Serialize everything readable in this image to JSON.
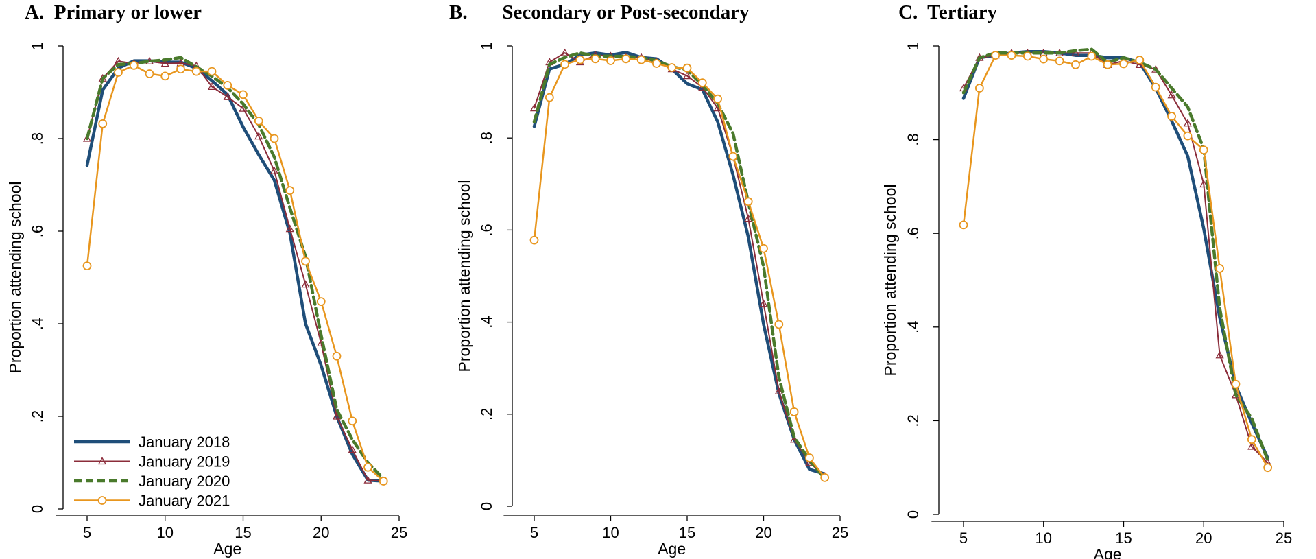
{
  "chart_data": [
    {
      "type": "line",
      "title": "A.  Primary or lower",
      "xlabel": "Age",
      "ylabel": "Proportion attending school",
      "xlim": [
        5,
        24
      ],
      "ylim": [
        0,
        1
      ],
      "xticks": [
        "5",
        "10",
        "15",
        "20",
        "25"
      ],
      "yticks": [
        "0",
        ".2",
        ".4",
        ".6",
        ".8",
        "1"
      ],
      "x": [
        5,
        6,
        7,
        8,
        9,
        10,
        11,
        12,
        13,
        14,
        15,
        16,
        17,
        18,
        19,
        20,
        21,
        22,
        23,
        24
      ],
      "legend_position": "bottom-left",
      "series": [
        {
          "name": "January 2018",
          "values": [
            0.742,
            0.905,
            0.952,
            0.968,
            0.968,
            0.965,
            0.965,
            0.952,
            0.925,
            0.895,
            0.825,
            0.765,
            0.71,
            0.595,
            0.4,
            0.31,
            0.2,
            0.118,
            0.062,
            0.06
          ]
        },
        {
          "name": "January 2019",
          "values": [
            0.8,
            0.93,
            0.967,
            0.962,
            0.967,
            0.962,
            0.963,
            0.957,
            0.912,
            0.89,
            0.865,
            0.805,
            0.73,
            0.605,
            0.485,
            0.358,
            0.2,
            0.128,
            0.062,
            0.06
          ]
        },
        {
          "name": "January 2020",
          "values": [
            0.8,
            0.93,
            0.96,
            0.962,
            0.967,
            0.97,
            0.975,
            0.955,
            0.935,
            0.91,
            0.875,
            0.83,
            0.76,
            0.65,
            0.545,
            0.375,
            0.215,
            0.15,
            0.1,
            0.065
          ]
        },
        {
          "name": "January 2021",
          "values": [
            0.525,
            0.832,
            0.943,
            0.958,
            0.94,
            0.935,
            0.95,
            0.945,
            0.945,
            0.915,
            0.895,
            0.838,
            0.8,
            0.688,
            0.535,
            0.448,
            0.33,
            0.19,
            0.09,
            0.06
          ]
        }
      ]
    },
    {
      "type": "line",
      "title": "B.       Secondary or Post-secondary",
      "xlabel": "Age",
      "ylabel": "Proportion attending school",
      "xlim": [
        5,
        24
      ],
      "ylim": [
        0,
        1
      ],
      "xticks": [
        "5",
        "10",
        "15",
        "20",
        "25"
      ],
      "yticks": [
        "0",
        ".2",
        ".4",
        ".6",
        ".8",
        "1"
      ],
      "x": [
        5,
        6,
        7,
        8,
        9,
        10,
        11,
        12,
        13,
        14,
        15,
        16,
        17,
        18,
        19,
        20,
        21,
        22,
        23,
        24
      ],
      "series": [
        {
          "name": "January 2018",
          "values": [
            0.825,
            0.95,
            0.96,
            0.98,
            0.985,
            0.98,
            0.986,
            0.975,
            0.972,
            0.95,
            0.918,
            0.905,
            0.835,
            0.72,
            0.585,
            0.395,
            0.245,
            0.145,
            0.08,
            0.07
          ]
        },
        {
          "name": "January 2019",
          "values": [
            0.865,
            0.965,
            0.985,
            0.965,
            0.98,
            0.978,
            0.975,
            0.975,
            0.965,
            0.95,
            0.935,
            0.91,
            0.865,
            0.76,
            0.625,
            0.44,
            0.25,
            0.145,
            0.095,
            0.065
          ]
        },
        {
          "name": "January 2020",
          "values": [
            0.835,
            0.96,
            0.975,
            0.985,
            0.978,
            0.978,
            0.977,
            0.975,
            0.968,
            0.955,
            0.948,
            0.915,
            0.875,
            0.81,
            0.66,
            0.52,
            0.28,
            0.15,
            0.1,
            0.06
          ]
        },
        {
          "name": "January 2021",
          "values": [
            0.578,
            0.888,
            0.96,
            0.97,
            0.972,
            0.968,
            0.972,
            0.97,
            0.962,
            0.953,
            0.952,
            0.92,
            0.885,
            0.76,
            0.662,
            0.56,
            0.395,
            0.205,
            0.105,
            0.062
          ]
        }
      ]
    },
    {
      "type": "line",
      "title": "C.  Tertiary",
      "xlabel": "Age",
      "ylabel": "Proportion attending school",
      "xlim": [
        5,
        24
      ],
      "ylim": [
        0,
        1
      ],
      "xticks": [
        "5",
        "10",
        "15",
        "20",
        "25"
      ],
      "yticks": [
        "0",
        ".2",
        ".4",
        ".6",
        ".8",
        "1"
      ],
      "x": [
        5,
        6,
        7,
        8,
        9,
        10,
        11,
        12,
        13,
        14,
        15,
        16,
        17,
        18,
        19,
        20,
        21,
        22,
        23,
        24
      ],
      "series": [
        {
          "name": "January 2018",
          "values": [
            0.888,
            0.975,
            0.98,
            0.985,
            0.988,
            0.988,
            0.985,
            0.98,
            0.98,
            0.975,
            0.975,
            0.965,
            0.91,
            0.84,
            0.765,
            0.61,
            0.42,
            0.275,
            0.195,
            0.12
          ]
        },
        {
          "name": "January 2019",
          "values": [
            0.91,
            0.975,
            0.98,
            0.985,
            0.985,
            0.985,
            0.985,
            0.985,
            0.985,
            0.96,
            0.968,
            0.96,
            0.95,
            0.895,
            0.835,
            0.705,
            0.34,
            0.255,
            0.145,
            0.11
          ]
        },
        {
          "name": "January 2020",
          "values": [
            0.9,
            0.975,
            0.985,
            0.985,
            0.985,
            0.985,
            0.985,
            0.99,
            0.993,
            0.965,
            0.975,
            0.965,
            0.95,
            0.91,
            0.87,
            0.78,
            0.44,
            0.255,
            0.205,
            0.115
          ]
        },
        {
          "name": "January 2021",
          "values": [
            0.618,
            0.91,
            0.98,
            0.98,
            0.978,
            0.972,
            0.968,
            0.96,
            0.978,
            0.96,
            0.962,
            0.97,
            0.912,
            0.85,
            0.808,
            0.778,
            0.525,
            0.278,
            0.16,
            0.1
          ]
        }
      ]
    }
  ],
  "series_styles": [
    {
      "color": "#1f4e79",
      "width": 4.5,
      "dash": "",
      "marker": "none"
    },
    {
      "color": "#8b2c3a",
      "width": 2,
      "dash": "",
      "marker": "triangle"
    },
    {
      "color": "#4a7a2c",
      "width": 4.5,
      "dash": "11 6",
      "marker": "none"
    },
    {
      "color": "#e8961e",
      "width": 2.5,
      "dash": "",
      "marker": "circle"
    }
  ]
}
